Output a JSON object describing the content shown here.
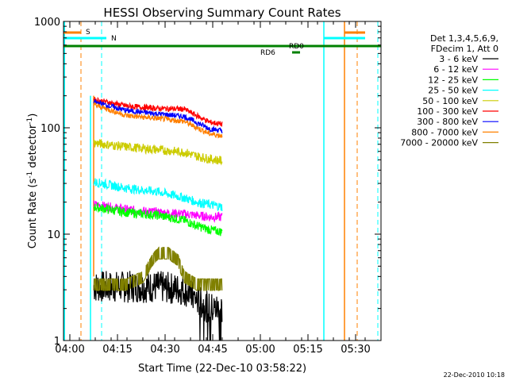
{
  "chart_data": {
    "type": "line",
    "title": "HESSI Observing Summary Count Rates",
    "xlabel": "Start Time (22-Dec-10 03:58:22)",
    "ylabel_main": "Count Rate (s",
    "ylabel_sup1": "-1",
    "ylabel_mid": " detector",
    "ylabel_sup2": "-1",
    "ylabel_end": ")",
    "ylog": true,
    "ylim": [
      1,
      1000
    ],
    "xlim_minutes": [
      0,
      100
    ],
    "x_ticks": [
      {
        "minute": 2,
        "label": "04:00"
      },
      {
        "minute": 17,
        "label": "04:15"
      },
      {
        "minute": 32,
        "label": "04:30"
      },
      {
        "minute": 47,
        "label": "04:45"
      },
      {
        "minute": 62,
        "label": "05:00"
      },
      {
        "minute": 77,
        "label": "05:15"
      },
      {
        "minute": 92,
        "label": "05:30"
      }
    ],
    "y_ticks": [
      {
        "value": 1,
        "label": "1"
      },
      {
        "value": 10,
        "label": "10"
      },
      {
        "value": 100,
        "label": "100"
      },
      {
        "value": 1000,
        "label": "1000"
      }
    ],
    "legend_header": [
      "Det 1,3,4,5,6,9,",
      "FDecim 1, Att 0"
    ],
    "legend_placement": "right",
    "series": [
      {
        "name": "3 - 6 keV",
        "color": "#000000",
        "x": [
          9.5,
          20,
          30,
          38,
          42,
          46,
          50
        ],
        "values": [
          3.2,
          3.2,
          3.2,
          3.0,
          2.4,
          2.0,
          2.0
        ]
      },
      {
        "name": "6 - 12 keV",
        "color": "#ff00ff",
        "x": [
          9.5,
          20,
          30,
          38,
          42,
          46,
          50
        ],
        "values": [
          19,
          17,
          16,
          15.5,
          15,
          14.5,
          14.5
        ]
      },
      {
        "name": "12 - 25 keV",
        "color": "#00ff00",
        "x": [
          9.5,
          20,
          30,
          38,
          42,
          46,
          50
        ],
        "values": [
          18,
          16,
          15,
          13.5,
          12,
          11,
          10.5
        ]
      },
      {
        "name": "25 - 50 keV",
        "color": "#00ffff",
        "x": [
          9.5,
          20,
          30,
          38,
          42,
          46,
          50
        ],
        "values": [
          31,
          27,
          25,
          22,
          20,
          19,
          18
        ]
      },
      {
        "name": "50 - 100 keV",
        "color": "#cccc00",
        "x": [
          9.5,
          20,
          30,
          38,
          42,
          46,
          50
        ],
        "values": [
          72,
          66,
          62,
          59,
          54,
          51,
          49
        ]
      },
      {
        "name": "100 - 300 keV",
        "color": "#ff0000",
        "x": [
          9.5,
          20,
          30,
          38,
          42,
          46,
          50
        ],
        "values": [
          185,
          160,
          152,
          150,
          130,
          113,
          108
        ]
      },
      {
        "name": "300 - 800 keV",
        "color": "#0000ff",
        "x": [
          9.5,
          20,
          30,
          38,
          42,
          46,
          50
        ],
        "values": [
          175,
          145,
          135,
          128,
          112,
          98,
          94
        ]
      },
      {
        "name": "800 - 7000 keV",
        "color": "#ff8000",
        "x": [
          9.5,
          20,
          30,
          38,
          42,
          46,
          50
        ],
        "values": [
          165,
          130,
          122,
          115,
          100,
          88,
          84
        ]
      },
      {
        "name": "7000 - 20000 keV",
        "color": "#808000",
        "x": [
          9.5,
          20,
          25,
          28,
          30,
          33,
          36,
          38,
          42,
          50
        ],
        "values": [
          3.8,
          3.8,
          4.5,
          6.5,
          7.5,
          7.5,
          6.5,
          4.5,
          3.8,
          3.8
        ]
      }
    ],
    "flags": {
      "s_label": "S",
      "n_label": "N",
      "rd0_label": "RD0",
      "rd6_label": "RD6"
    }
  },
  "timestamp": "22-Dec-2010 10:18",
  "colors": {
    "saa": "#ff8000",
    "night": "#00ffff",
    "decim": "#008000"
  }
}
